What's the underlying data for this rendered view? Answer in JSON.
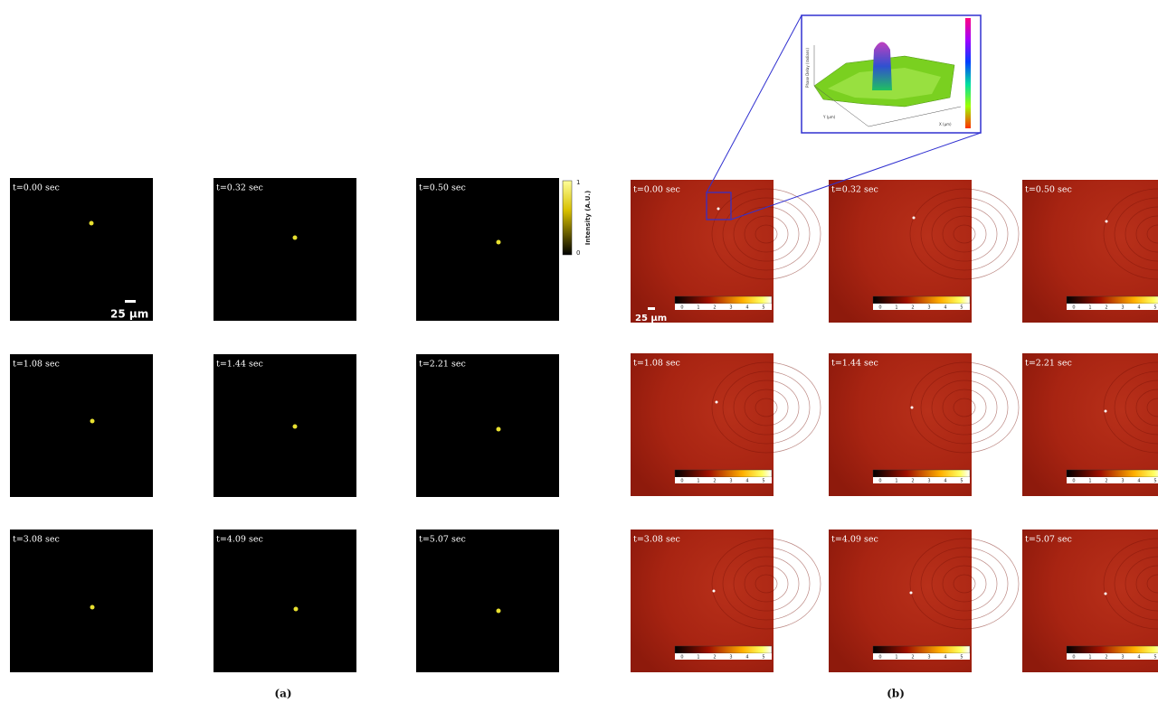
{
  "panel_a": {
    "frames": [
      {
        "time": "t=0.00 sec"
      },
      {
        "time": "t=0.32 sec"
      },
      {
        "time": "t=0.50 sec"
      },
      {
        "time": "t=1.08 sec"
      },
      {
        "time": "t=1.44 sec"
      },
      {
        "time": "t=2.21 sec"
      },
      {
        "time": "t=3.08 sec"
      },
      {
        "time": "t=4.09 sec"
      },
      {
        "time": "t=5.07 sec"
      }
    ],
    "scale_bar": "25 µm",
    "colorbar": {
      "max": "1",
      "min": "0",
      "label": "Intensity (A.U.)"
    },
    "caption": "(a)"
  },
  "panel_b": {
    "frames": [
      {
        "time": "t=0.00 sec"
      },
      {
        "time": "t=0.32 sec"
      },
      {
        "time": "t=0.50 sec"
      },
      {
        "time": "t=1.08 sec"
      },
      {
        "time": "t=1.44 sec"
      },
      {
        "time": "t=2.21 sec"
      },
      {
        "time": "t=3.08 sec"
      },
      {
        "time": "t=4.09 sec"
      },
      {
        "time": "t=5.07 sec"
      }
    ],
    "scale_bar": "25 µm",
    "colorbar_ticks": [
      0,
      1,
      2,
      3,
      4,
      5
    ],
    "inset": {
      "z_label": "Phase Delay (radians)",
      "x_label": "X (µm)",
      "y_label": "Y (µm)"
    },
    "caption": "(b)"
  }
}
